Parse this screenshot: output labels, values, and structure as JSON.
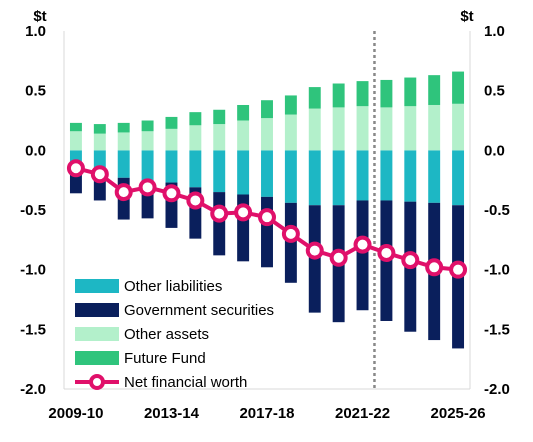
{
  "chart_data": {
    "type": "bar",
    "title": "",
    "unit_left": "$t",
    "unit_right": "$t",
    "ylim": [
      -2.0,
      1.0
    ],
    "yticks": [
      "1.0",
      "0.5",
      "0.0",
      "-0.5",
      "-1.0",
      "-1.5",
      "-2.0"
    ],
    "ytick_values": [
      1.0,
      0.5,
      0.0,
      -0.5,
      -1.0,
      -1.5,
      -2.0
    ],
    "xtick_labels": [
      "2009-10",
      "2013-14",
      "2017-18",
      "2021-22",
      "2025-26"
    ],
    "categories": [
      "2009-10",
      "2010-11",
      "2011-12",
      "2012-13",
      "2013-14",
      "2014-15",
      "2015-16",
      "2016-17",
      "2017-18",
      "2018-19",
      "2019-20",
      "2020-21",
      "2021-22",
      "2022-23",
      "2023-24",
      "2024-25",
      "2025-26"
    ],
    "stacked": true,
    "projection_start": "2022-23",
    "series": [
      {
        "name": "Other liabilities",
        "kind": "bar",
        "color": "#1db7c4",
        "values": [
          -0.16,
          -0.19,
          -0.23,
          -0.25,
          -0.27,
          -0.31,
          -0.35,
          -0.37,
          -0.39,
          -0.44,
          -0.46,
          -0.46,
          -0.42,
          -0.42,
          -0.43,
          -0.44,
          -0.46
        ]
      },
      {
        "name": "Government securities",
        "kind": "bar",
        "color": "#0a1f5c",
        "values": [
          -0.2,
          -0.23,
          -0.35,
          -0.32,
          -0.38,
          -0.43,
          -0.53,
          -0.56,
          -0.59,
          -0.67,
          -0.9,
          -0.98,
          -0.92,
          -1.01,
          -1.09,
          -1.15,
          -1.2
        ]
      },
      {
        "name": "Other assets",
        "kind": "bar",
        "color": "#b3f0cb",
        "values": [
          0.16,
          0.14,
          0.15,
          0.16,
          0.18,
          0.21,
          0.22,
          0.25,
          0.27,
          0.3,
          0.35,
          0.36,
          0.37,
          0.36,
          0.37,
          0.38,
          0.39
        ]
      },
      {
        "name": "Future Fund",
        "kind": "bar",
        "color": "#2fc47c",
        "values": [
          0.07,
          0.08,
          0.08,
          0.09,
          0.1,
          0.11,
          0.12,
          0.13,
          0.15,
          0.16,
          0.18,
          0.2,
          0.21,
          0.23,
          0.24,
          0.25,
          0.27
        ]
      },
      {
        "name": "Net financial worth",
        "kind": "line",
        "color": "#e0106a",
        "values": [
          -0.15,
          -0.2,
          -0.35,
          -0.31,
          -0.36,
          -0.42,
          -0.53,
          -0.52,
          -0.56,
          -0.7,
          -0.84,
          -0.9,
          -0.79,
          -0.86,
          -0.92,
          -0.98,
          -1.0
        ]
      }
    ],
    "legend_position": "bottom-left",
    "grid": false
  }
}
